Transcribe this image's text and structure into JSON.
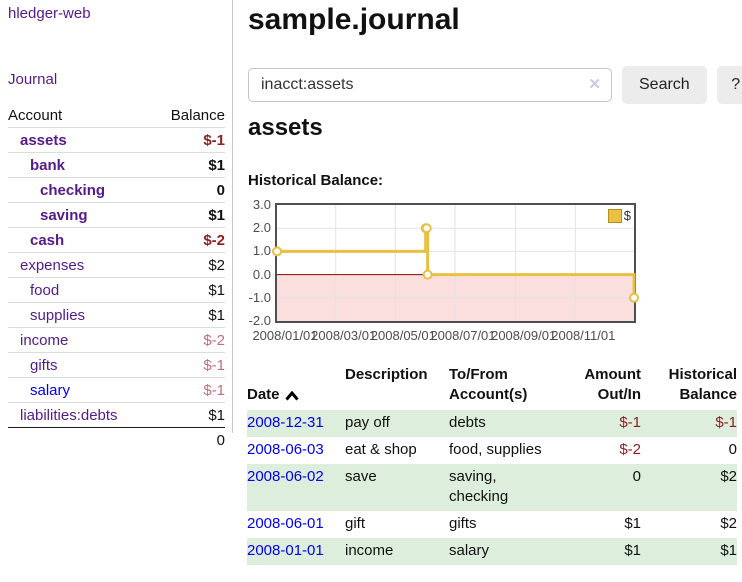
{
  "colors": {
    "link_unvisited_blue": "#0000EE",
    "link_visited_purple": "#551A8B",
    "negative_strong": "#8e1f1f",
    "negative_muted": "#c1707a",
    "row_stripe_green": "#ddeedd",
    "chart_line_gold": "#e9c044",
    "chart_negative_fill": "#fbdfdf",
    "chart_zero_line": "#8b0000",
    "button_gray": "#ececec"
  },
  "sidebar": {
    "app_title": "hledger-web",
    "journal_link": "Journal",
    "accounts_table": {
      "headers": {
        "account": "Account",
        "balance": "Balance"
      },
      "rows": [
        {
          "account": "assets",
          "balance": "$-1"
        },
        {
          "account": "bank",
          "balance": "$1"
        },
        {
          "account": "checking",
          "balance": "0"
        },
        {
          "account": "saving",
          "balance": "$1"
        },
        {
          "account": "cash",
          "balance": "$-2"
        },
        {
          "account": "expenses",
          "balance": "$2"
        },
        {
          "account": "food",
          "balance": "$1"
        },
        {
          "account": "supplies",
          "balance": "$1"
        },
        {
          "account": "income",
          "balance": "$-2"
        },
        {
          "account": "gifts",
          "balance": "$-1"
        },
        {
          "account": "salary",
          "balance": "$-1"
        },
        {
          "account": "liabilities:debts",
          "balance": "$1"
        }
      ],
      "total": "0"
    }
  },
  "main": {
    "title": "sample.journal",
    "search": {
      "value": "inacct:assets",
      "clear_label": "✕",
      "search_button": "Search",
      "help_button": "?"
    },
    "heading": "assets",
    "chart_label": "Historical Balance:"
  },
  "chart_data": {
    "type": "line",
    "title": "Historical Balance",
    "step": true,
    "series": [
      {
        "name": "$",
        "points": [
          [
            "2008-01-01",
            1
          ],
          [
            "2008-06-01",
            2
          ],
          [
            "2008-06-02",
            2
          ],
          [
            "2008-06-03",
            0
          ],
          [
            "2008-12-31",
            -1
          ]
        ]
      }
    ],
    "x_range": [
      "2008-01-01",
      "2008-12-31"
    ],
    "ylim": [
      -2,
      3
    ],
    "y_ticks": [
      "3.0",
      "2.0",
      "1.0",
      "0.0",
      "-1.0",
      "-2.0"
    ],
    "x_ticks": [
      "2008/01/01",
      "2008/03/01",
      "2008/05/01",
      "2008/07/01",
      "2008/09/01",
      "2008/11/01"
    ],
    "legend": {
      "position": "top-right",
      "label": "$"
    },
    "grid": true,
    "negative_region_shaded": true
  },
  "register": {
    "headers": [
      {
        "label": "Date",
        "sort": "asc"
      },
      {
        "label": "Description"
      },
      {
        "label": "To/From\nAccount(s)"
      },
      {
        "label": "Amount\nOut/In"
      },
      {
        "label": "Historical\nBalance"
      }
    ],
    "rows": [
      {
        "date": "2008-12-31",
        "description": "pay off",
        "accounts": "debts",
        "amount": "$-1",
        "balance": "$-1"
      },
      {
        "date": "2008-06-03",
        "description": "eat & shop",
        "accounts": "food, supplies",
        "amount": "$-2",
        "balance": "0"
      },
      {
        "date": "2008-06-02",
        "description": "save",
        "accounts": "saving,\nchecking",
        "amount": "0",
        "balance": "$2"
      },
      {
        "date": "2008-06-01",
        "description": "gift",
        "accounts": "gifts",
        "amount": "$1",
        "balance": "$2"
      },
      {
        "date": "2008-01-01",
        "description": "income",
        "accounts": "salary",
        "amount": "$1",
        "balance": "$1"
      }
    ]
  }
}
